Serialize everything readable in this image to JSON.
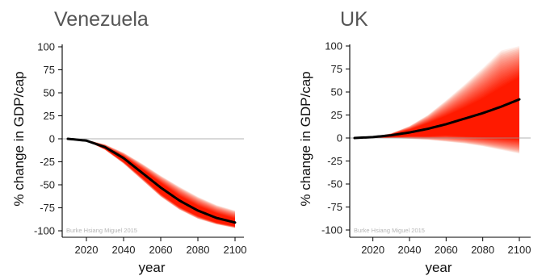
{
  "credit_text": "Burke Hsiang Miguel 2015",
  "colors": {
    "fan_light": "#fbd3c8",
    "fan_mid": "#f77a5c",
    "fan_core": "#ff1a00",
    "median": "#000000",
    "zero_line": "#9a9a9a"
  },
  "chart_data": [
    {
      "type": "area",
      "title": "Venezuela",
      "xlabel": "year",
      "ylabel": "% change in GDP/cap",
      "xlim": [
        2010,
        2100
      ],
      "ylim": [
        -100,
        100
      ],
      "x_ticks": [
        2020,
        2040,
        2060,
        2080,
        2100
      ],
      "y_ticks": [
        100,
        75,
        50,
        25,
        0,
        -25,
        -50,
        -75,
        -100
      ],
      "grid": false,
      "series": [
        {
          "role": "median",
          "x": [
            2010,
            2020,
            2030,
            2040,
            2050,
            2060,
            2070,
            2080,
            2090,
            2100
          ],
          "y": [
            0,
            -2,
            -9,
            -21,
            -37,
            -53,
            -67,
            -78,
            -86,
            -91
          ]
        },
        {
          "role": "band_outer",
          "x": [
            2010,
            2020,
            2030,
            2040,
            2050,
            2060,
            2070,
            2080,
            2090,
            2100
          ],
          "lower": [
            0,
            -2,
            -12,
            -27,
            -45,
            -63,
            -77,
            -87,
            -93,
            -97
          ],
          "upper": [
            0,
            -1,
            -6,
            -15,
            -27,
            -40,
            -52,
            -63,
            -72,
            -78
          ]
        },
        {
          "role": "band_inner",
          "x": [
            2010,
            2020,
            2030,
            2040,
            2050,
            2060,
            2070,
            2080,
            2090,
            2100
          ],
          "lower": [
            0,
            -2,
            -11,
            -25,
            -42,
            -60,
            -74,
            -84,
            -91,
            -95
          ],
          "upper": [
            0,
            -2,
            -8,
            -19,
            -33,
            -48,
            -62,
            -73,
            -81,
            -87
          ]
        }
      ]
    },
    {
      "type": "area",
      "title": "UK",
      "xlabel": "year",
      "ylabel": "% change in GDP/cap",
      "xlim": [
        2010,
        2100
      ],
      "ylim": [
        -100,
        100
      ],
      "x_ticks": [
        2020,
        2040,
        2060,
        2080,
        2100
      ],
      "y_ticks": [
        100,
        75,
        50,
        25,
        0,
        -25,
        -50,
        -75,
        -100
      ],
      "grid": false,
      "series": [
        {
          "role": "median",
          "x": [
            2010,
            2020,
            2030,
            2040,
            2050,
            2060,
            2070,
            2080,
            2090,
            2100
          ],
          "y": [
            0,
            1,
            3,
            6,
            10,
            15,
            21,
            27,
            34,
            42
          ]
        },
        {
          "role": "band_outer",
          "x": [
            2010,
            2020,
            2030,
            2040,
            2050,
            2060,
            2070,
            2080,
            2090,
            2100
          ],
          "lower": [
            0,
            0,
            0,
            -1,
            -2,
            -4,
            -6,
            -9,
            -13,
            -17
          ],
          "upper": [
            0,
            1,
            5,
            13,
            25,
            41,
            58,
            76,
            95,
            100
          ]
        },
        {
          "role": "band_inner",
          "x": [
            2010,
            2020,
            2030,
            2040,
            2050,
            2060,
            2070,
            2080,
            2090,
            2100
          ],
          "lower": [
            0,
            0,
            1,
            2,
            2,
            3,
            2,
            1,
            0,
            -1
          ],
          "upper": [
            0,
            1,
            4,
            9,
            16,
            24,
            33,
            43,
            55,
            66
          ]
        }
      ]
    }
  ]
}
